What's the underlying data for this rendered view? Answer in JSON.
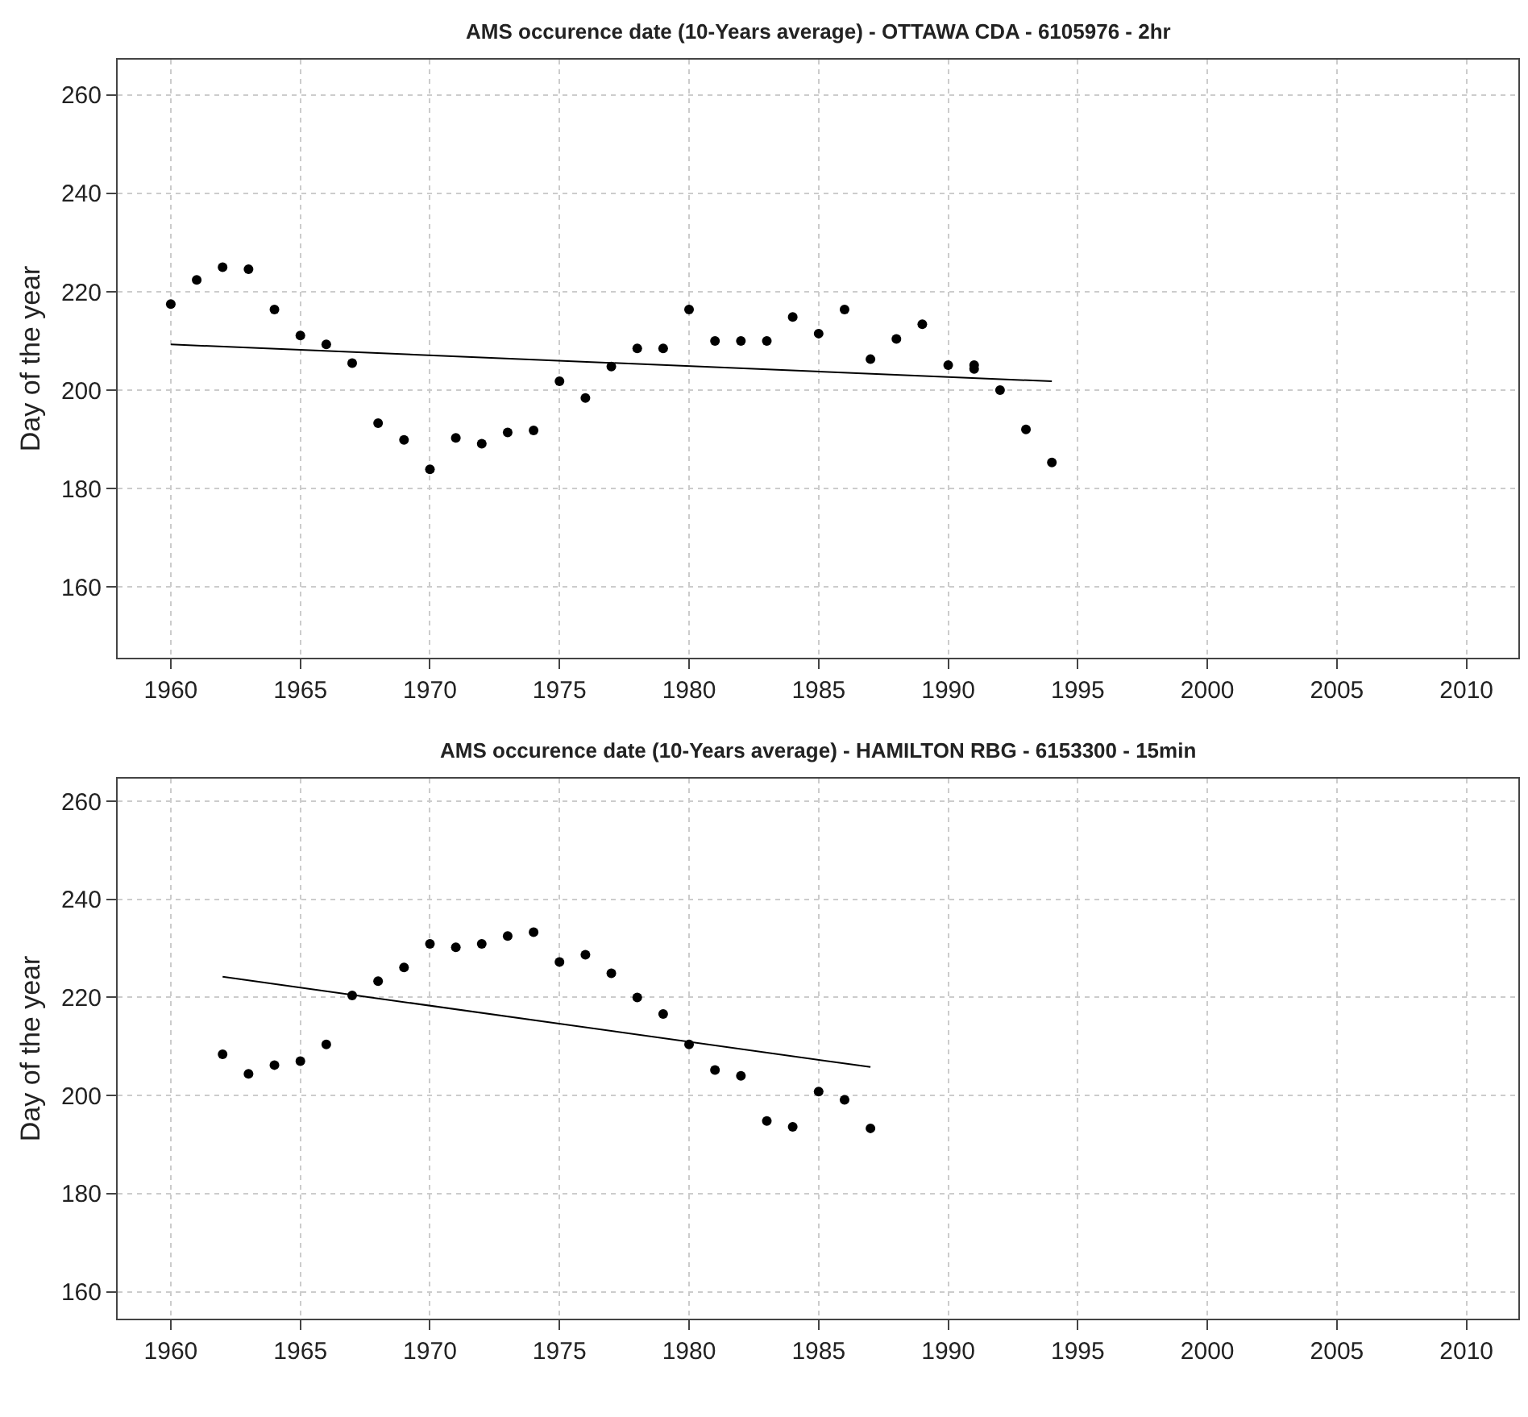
{
  "chart_data": [
    {
      "type": "scatter",
      "title": "AMS occurence date (10-Years average) - OTTAWA CDA - 6105976 - 2hr",
      "ylabel": "Day of the year",
      "xlim": [
        1957.95,
        2012
      ],
      "xticks": [
        1960,
        1965,
        1970,
        1975,
        1980,
        1985,
        1990,
        1995,
        2000,
        2005,
        2010
      ],
      "ylim": [
        145.6,
        267.2
      ],
      "yticks": [
        160,
        180,
        200,
        220,
        240,
        260
      ],
      "grid": true,
      "series": [
        {
          "marker": "circle",
          "color": "#000000",
          "x": [
            1960,
            1961,
            1962,
            1963,
            1964,
            1965,
            1966,
            1967,
            1968,
            1969,
            1970,
            1971,
            1972,
            1973,
            1974,
            1975,
            1976,
            1977,
            1978,
            1979,
            1980,
            1981,
            1982,
            1983,
            1984,
            1985,
            1986,
            1987,
            1988,
            1989,
            1990,
            1991,
            1991,
            1992,
            1993,
            1994
          ],
          "values": [
            217.5,
            222.4,
            225,
            224.6,
            216.4,
            211.1,
            209.3,
            205.5,
            193.3,
            189.9,
            183.9,
            190.3,
            189.1,
            191.4,
            191.8,
            201.8,
            198.4,
            204.8,
            208.5,
            208.5,
            216.4,
            210,
            210,
            210,
            214.9,
            211.5,
            216.4,
            206.3,
            210.4,
            213.4,
            205.1,
            205.1,
            204.3,
            200,
            192,
            185.3
          ]
        },
        {
          "type": "line",
          "marker": "none",
          "color": "#000000",
          "line_style": "solid",
          "x": [
            1960,
            1994
          ],
          "values": [
            209.3,
            201.8
          ]
        }
      ]
    },
    {
      "type": "scatter",
      "title": "AMS occurence date (10-Years average) - HAMILTON RBG - 6153300 - 15min",
      "ylabel": "Day of the year",
      "xlim": [
        1957.95,
        2012
      ],
      "xticks": [
        1960,
        1965,
        1970,
        1975,
        1980,
        1985,
        1990,
        1995,
        2000,
        2005,
        2010
      ],
      "ylim": [
        154.5,
        264.6
      ],
      "yticks": [
        160,
        180,
        200,
        220,
        240,
        260
      ],
      "grid": true,
      "series": [
        {
          "marker": "circle",
          "color": "#000000",
          "x": [
            1962,
            1963,
            1964,
            1965,
            1966,
            1967,
            1968,
            1969,
            1970,
            1971,
            1972,
            1973,
            1974,
            1975,
            1976,
            1977,
            1978,
            1979,
            1980,
            1981,
            1982,
            1983,
            1984,
            1985,
            1986,
            1987
          ],
          "values": [
            208.4,
            204.4,
            206.2,
            207,
            210.4,
            220.4,
            223.3,
            226.1,
            230.9,
            230.2,
            230.9,
            232.5,
            233.3,
            227.2,
            228.7,
            224.9,
            220,
            216.6,
            210.4,
            205.2,
            204,
            194.8,
            193.6,
            200.8,
            199.1,
            193.3
          ]
        },
        {
          "type": "line",
          "marker": "none",
          "color": "#000000",
          "line_style": "solid",
          "x": [
            1962,
            1987
          ],
          "values": [
            224.2,
            205.8
          ]
        }
      ]
    }
  ]
}
